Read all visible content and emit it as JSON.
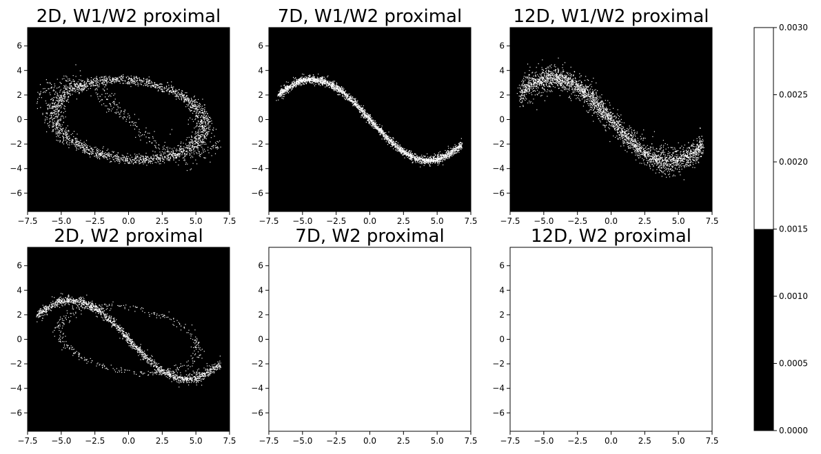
{
  "chart_data": {
    "type": "heatmap",
    "colormap": {
      "below": "#000000",
      "above": "#ffffff",
      "threshold": 0.0015
    },
    "xlim": [
      -7.5,
      7.5
    ],
    "ylim": [
      -7.5,
      7.5
    ],
    "x_ticks": [
      "−7.5",
      "−5.0",
      "−2.5",
      "0.0",
      "2.5",
      "5.0",
      "7.5"
    ],
    "y_ticks": [
      "6",
      "4",
      "2",
      "0",
      "−2",
      "−4",
      "−6"
    ],
    "y_tick_values": [
      6,
      4,
      2,
      0,
      -2,
      -4,
      -6
    ],
    "panels": [
      {
        "title": "2D, W1/W2 proximal",
        "filled": true
      },
      {
        "title": "7D, W1/W2 proximal",
        "filled": true
      },
      {
        "title": "12D, W1/W2 proximal",
        "filled": true
      },
      {
        "title": "2D, W2 proximal",
        "filled": true
      },
      {
        "title": "7D, W2 proximal",
        "filled": false
      },
      {
        "title": "12D, W2 proximal",
        "filled": false
      }
    ],
    "colorbar": {
      "range": [
        0.0,
        0.003
      ],
      "ticks": [
        "0.0030",
        "0.0025",
        "0.0020",
        "0.0015",
        "0.0010",
        "0.0005",
        "0.0000"
      ],
      "tick_values": [
        0.003,
        0.0025,
        0.002,
        0.0015,
        0.001,
        0.0005,
        0.0
      ]
    }
  }
}
